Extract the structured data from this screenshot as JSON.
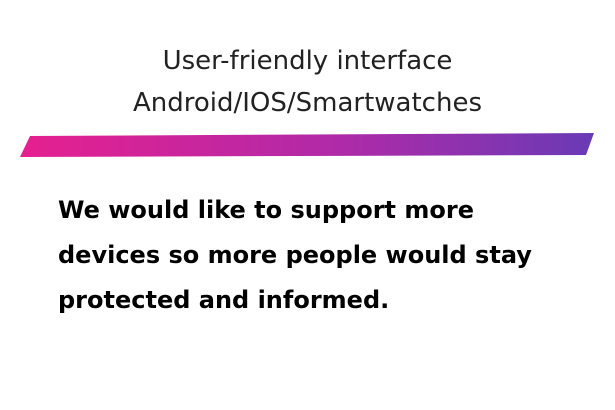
{
  "header": {
    "title_line_1": "User-friendly interface",
    "title_line_2": "Android/IOS/Smartwatches"
  },
  "divider": {
    "gradient_start": "#e6208f",
    "gradient_mid": "#b02aa8",
    "gradient_end": "#6a3ab5"
  },
  "body": {
    "line_1": "We would like to support more",
    "line_2": "devices so more people would stay",
    "line_3": "protected and informed."
  }
}
